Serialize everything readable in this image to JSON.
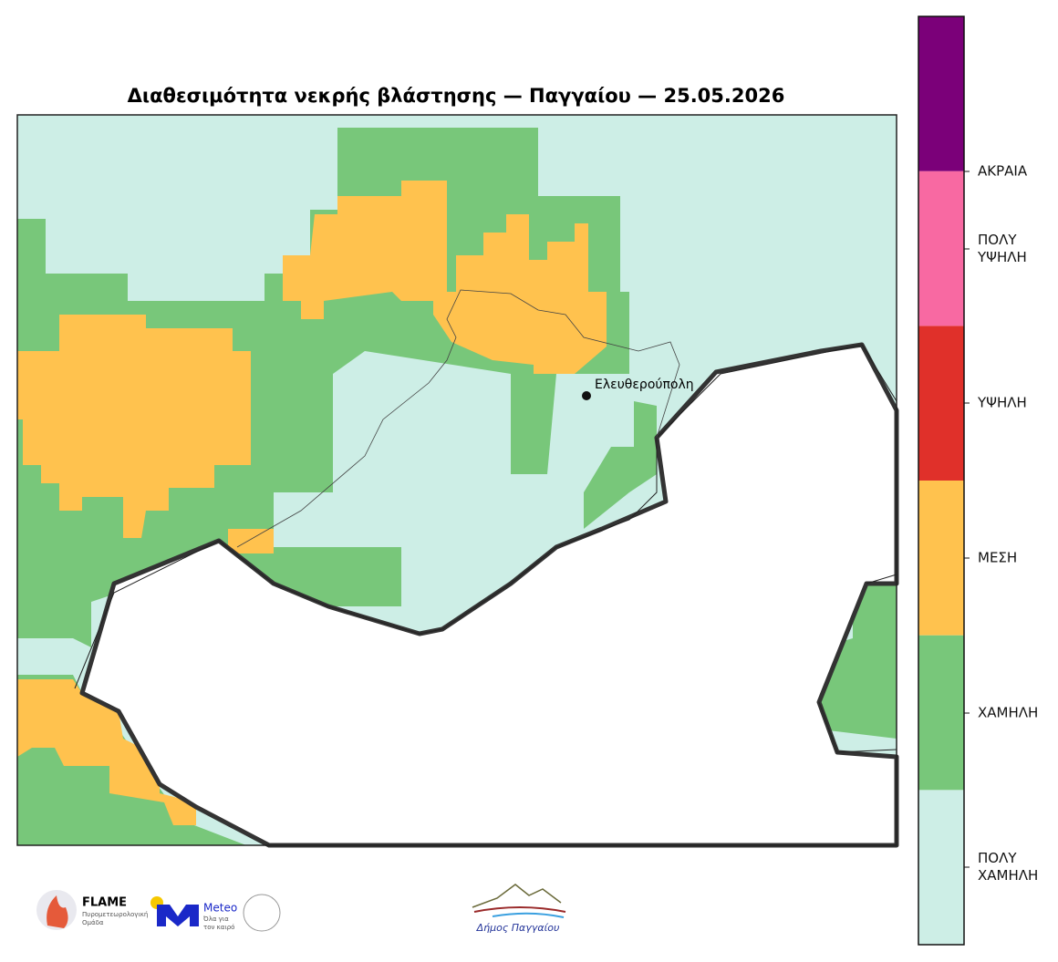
{
  "title": "Διαθεσιμότητα νεκρής βλάστησης — Παγγαίου — 25.05.2026",
  "map": {
    "city": "Ελευθερούπολη"
  },
  "legend": {
    "colors": [
      "#cdeee6",
      "#78c77a",
      "#ffc24e",
      "#e0302a",
      "#f869a2",
      "#7b0079"
    ],
    "labels": [
      "ΠΟΛΥ ΧΑΜΗΛΗ",
      "ΧΑΜΗΛΗ",
      "ΜΕΣΗ",
      "ΥΨΗΛΗ",
      "ΠΟΛΥ ΥΨΗΛΗ",
      "ΑΚΡΑΙΑ"
    ]
  },
  "logos": {
    "flame": "FLAME",
    "flame_sub": "Πυρομετεωρολογική Ομάδα",
    "meteo": "Meteo",
    "meteo_sub": "Όλα για τον καιρό",
    "municipality": "Δήμος Παγγαίου"
  }
}
